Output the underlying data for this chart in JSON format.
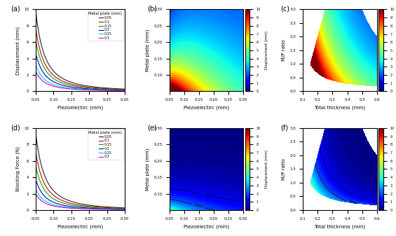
{
  "fig_size": [
    5.65,
    3.37
  ],
  "dpi": 100,
  "panel_labels": [
    "(a)",
    "(b)",
    "(c)",
    "(d)",
    "(e)",
    "(f)"
  ],
  "metal_plate_values": [
    0.05,
    0.1,
    0.15,
    0.2,
    0.25,
    0.3
  ],
  "line_colors_a": [
    "#222222",
    "#cc0000",
    "#00aa00",
    "#0000cc",
    "#00cccc",
    "#cc00cc"
  ],
  "colorbar_label": "Displacement (mm)",
  "colorbar_ticks": [
    0.0,
    1.0,
    2.0,
    3.0,
    4.0,
    5.0,
    6.0,
    7.0,
    8.0,
    9.0,
    10.0
  ],
  "cmap": "jet",
  "xlabel_a": "Piezoelectirc (mm)",
  "ylabel_a": "Displacement (mm)",
  "xlabel_b": "Piezoelectirc (mm)",
  "ylabel_b": "Metal plate (mm)",
  "xlabel_c": "Total thickness (mm)",
  "ylabel_c": "M/P ratio",
  "xlabel_d": "Piezoelectirc (mm)",
  "ylabel_d": "Blocking Force (N)",
  "xlabel_e": "Piezoelectirc (mm)",
  "ylabel_e": "Metal plate (mm)",
  "xlabel_f": "Total thickness (mm)",
  "ylabel_f": "M/P ratio",
  "legend_title": "Metal plate (mm)",
  "legend_labels": [
    "0.05",
    "0.1",
    "0.15",
    "0.2",
    "0.25",
    "0.3"
  ],
  "scales_a": [
    9.9,
    7.8,
    6.3,
    4.7,
    3.3,
    2.5
  ],
  "scales_d": [
    9.5,
    7.2,
    5.5,
    3.8,
    2.6,
    2.0
  ]
}
